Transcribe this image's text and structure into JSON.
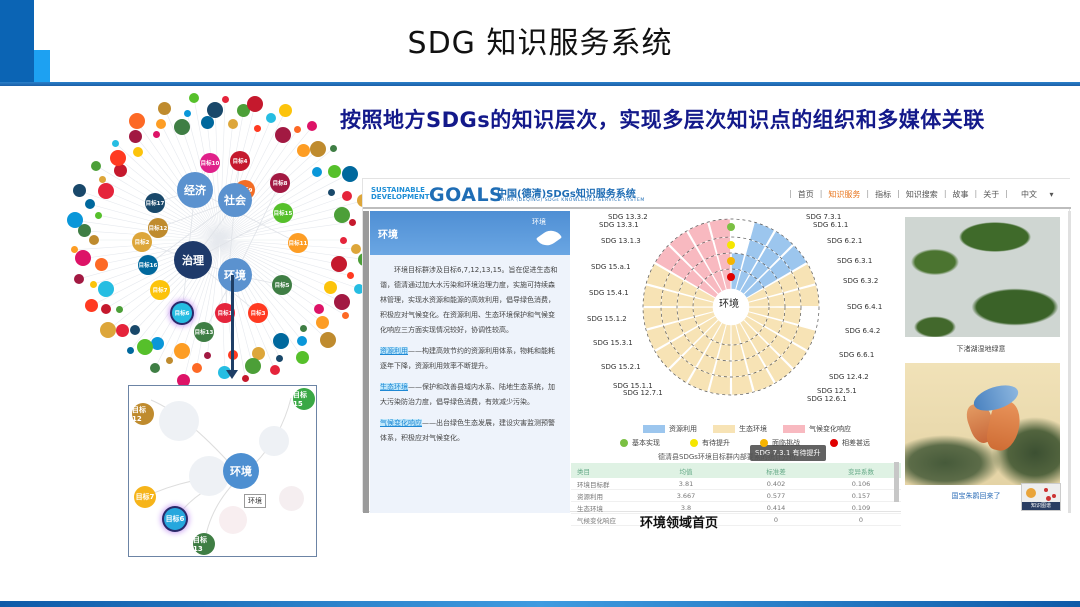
{
  "slide": {
    "title": "SDG 知识服务系统",
    "subtitle": "按照地方SDGs的知识层次，实现多层次知识点的组织和多媒体关联",
    "bottom_caption": "环境领域首页"
  },
  "graph": {
    "core_nodes": [
      {
        "label": "经济",
        "color": "#5b92cf"
      },
      {
        "label": "社会",
        "color": "#5b92cf"
      },
      {
        "label": "治理",
        "color": "#1e3a6a"
      },
      {
        "label": "环境",
        "color": "#5b92cf"
      }
    ],
    "goal_nodes": [
      {
        "label": "目标10",
        "color": "#e0218a"
      },
      {
        "label": "目标4",
        "color": "#c5192d"
      },
      {
        "label": "目标9",
        "color": "#f36d25"
      },
      {
        "label": "目标8",
        "color": "#a21942"
      },
      {
        "label": "目标17",
        "color": "#19486a"
      },
      {
        "label": "目标12",
        "color": "#bf8b2e"
      },
      {
        "label": "目标15",
        "color": "#56c02b"
      },
      {
        "label": "目标2",
        "color": "#dda63a"
      },
      {
        "label": "目标11",
        "color": "#fd9d24"
      },
      {
        "label": "目标16",
        "color": "#00689d"
      },
      {
        "label": "目标7",
        "color": "#fcc30b"
      },
      {
        "label": "目标5",
        "color": "#3f7e44"
      },
      {
        "label": "目标6",
        "color": "#26bde2"
      },
      {
        "label": "目标1",
        "color": "#e5243b"
      },
      {
        "label": "目标3",
        "color": "#ff3a21"
      },
      {
        "label": "目标13",
        "color": "#3f7e44"
      }
    ],
    "detail": {
      "center": "环境",
      "tooltip": "环境",
      "nodes": [
        "目标12",
        "目标15",
        "目标7",
        "目标6",
        "目标13"
      ]
    }
  },
  "app": {
    "logo": {
      "sd_line1": "SUSTAINABLE",
      "sd_line2": "DEVELOPMENT",
      "goals": "GOALS",
      "cn": "中国(德清)SDGs知识服务系统",
      "en": "CHINA (DEQING) SDGs KNOWLEDGE SERVICE SYSTEM"
    },
    "nav": [
      {
        "label": "首页",
        "active": false
      },
      {
        "label": "知识服务",
        "active": true
      },
      {
        "label": "指标",
        "active": false
      },
      {
        "label": "知识搜索",
        "active": false
      },
      {
        "label": "故事",
        "active": false
      },
      {
        "label": "关于",
        "active": false
      }
    ],
    "language": "中文",
    "panel": {
      "title": "环境",
      "icon_label": "环境",
      "intro": "环境目标群涉及目标6,7,12,13,15。旨在促进生态和谐，德清通过加大水污染和环境治理力度，实施可持续森林管理，实现水资源和能源的高效利用，倡导绿色消费，积极应对气候变化。在资源利用、生态环境保护和气候变化响应三方面实现情况较好，协调性较高。",
      "items": [
        {
          "keyword": "资源利用",
          "text": "——构建高效节约的资源利用体系，物耗和能耗逐年下降，资源利用效率不断提升。"
        },
        {
          "keyword": "生态环境",
          "text": "——保护和改善县域内水系、陆地生态系统，加大污染防治力度，倡导绿色消费，有效减少污染。"
        },
        {
          "keyword": "气候变化响应",
          "text": "——出台绿色生态发展，建设灾害监测预警体系，积极应对气候变化。"
        }
      ]
    },
    "chart": {
      "center_label": "环境",
      "tooltip": "SDG 7.3.1  有待提升",
      "labels_left": [
        "SDG 13.3.2",
        "SDG 13.3.1",
        "SDG 13.1.3",
        "SDG 15.a.1",
        "SDG 15.4.1",
        "SDG 15.1.2",
        "SDG 15.3.1",
        "SDG 15.2.1",
        "SDG 15.1.1",
        "SDG 12.7.1"
      ],
      "labels_right": [
        "SDG 7.3.1",
        "SDG 6.1.1",
        "SDG 6.2.1",
        "SDG 6.3.1",
        "SDG 6.3.2",
        "SDG 6.4.1",
        "SDG 6.4.2",
        "SDG 6.6.1",
        "SDG 12.4.2",
        "SDG 12.5.1",
        "SDG 12.6.1"
      ],
      "legend_categories": [
        {
          "label": "资源利用",
          "color": "#9cc6ee"
        },
        {
          "label": "生态环境",
          "color": "#f7e3b5"
        },
        {
          "label": "气候变化响应",
          "color": "#f8b9c0"
        }
      ],
      "legend_status": [
        {
          "label": "基本实现",
          "color": "#7bc043"
        },
        {
          "label": "有待提升",
          "color": "#f5e600"
        },
        {
          "label": "面临挑战",
          "color": "#f6b400"
        },
        {
          "label": "相差甚远",
          "color": "#e00000"
        }
      ],
      "caption": "德清县SDGs环境目标群内部要素的统计分析"
    },
    "table": {
      "headers": [
        "类目",
        "均值",
        "标准差",
        "变异系数"
      ],
      "rows": [
        [
          "环境目标群",
          "3.81",
          "0.402",
          "0.106"
        ],
        [
          "资源利用",
          "3.667",
          "0.577",
          "0.157"
        ],
        [
          "生态环境",
          "3.8",
          "0.414",
          "0.109"
        ],
        [
          "气候变化响应",
          "4",
          "0",
          "0"
        ]
      ]
    },
    "media": [
      {
        "caption": "下渚湖湿地绿意"
      },
      {
        "caption": "国宝朱鹮回来了"
      }
    ],
    "kg_badge": "知识图谱"
  }
}
